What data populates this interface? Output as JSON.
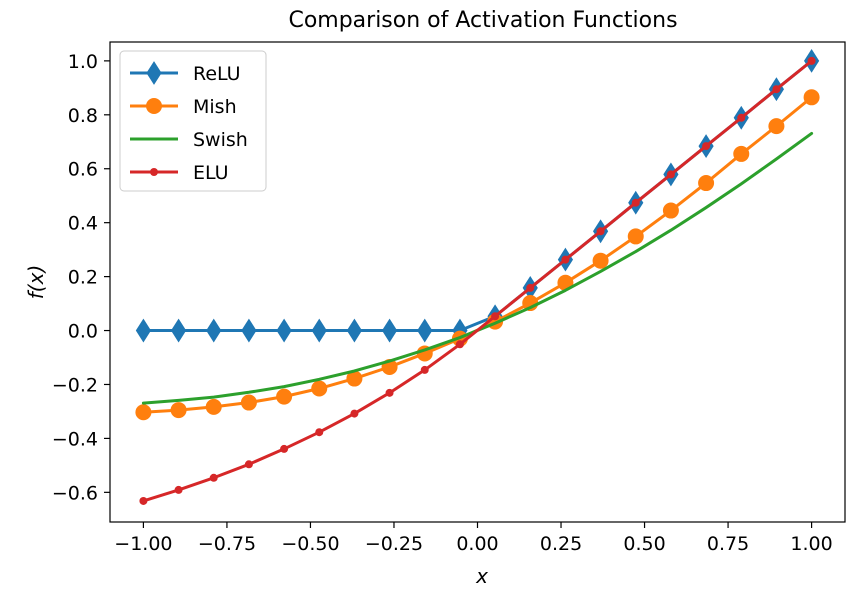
{
  "chart_data": {
    "type": "line",
    "title": "Comparison of Activation Functions",
    "xlabel": "x",
    "ylabel": "f(x)",
    "xlim": [
      -1.1,
      1.1
    ],
    "ylim": [
      -0.71,
      1.07
    ],
    "grid": false,
    "legend_position": "top-left",
    "x_ticks": [
      -1.0,
      -0.75,
      -0.5,
      -0.25,
      0.0,
      0.25,
      0.5,
      0.75,
      1.0
    ],
    "x_tick_labels": [
      "−1.00",
      "−0.75",
      "−0.50",
      "−0.25",
      "0.00",
      "0.25",
      "0.50",
      "0.75",
      "1.00"
    ],
    "y_ticks": [
      -0.6,
      -0.4,
      -0.2,
      0.0,
      0.2,
      0.4,
      0.6,
      0.8,
      1.0
    ],
    "y_tick_labels": [
      "−0.6",
      "−0.4",
      "−0.2",
      "0.0",
      "0.2",
      "0.4",
      "0.6",
      "0.8",
      "1.0"
    ],
    "x": [
      -1.0,
      -0.8947,
      -0.7895,
      -0.6842,
      -0.5789,
      -0.4737,
      -0.3684,
      -0.2632,
      -0.1579,
      -0.0526,
      0.0526,
      0.1579,
      0.2632,
      0.3684,
      0.4737,
      0.5789,
      0.6842,
      0.7895,
      0.8947,
      1.0
    ],
    "series": [
      {
        "name": "ReLU",
        "color": "#1f77b4",
        "marker": "thin-diamond",
        "values": [
          0,
          0,
          0,
          0,
          0,
          0,
          0,
          0,
          0,
          0,
          0.053,
          0.158,
          0.263,
          0.368,
          0.474,
          0.579,
          0.684,
          0.789,
          0.895,
          1.0
        ]
      },
      {
        "name": "Mish",
        "color": "#ff7f0e",
        "marker": "circle",
        "values": [
          -0.303,
          -0.295,
          -0.283,
          -0.267,
          -0.245,
          -0.215,
          -0.178,
          -0.135,
          -0.085,
          -0.03,
          0.033,
          0.102,
          0.177,
          0.259,
          0.349,
          0.445,
          0.547,
          0.655,
          0.758,
          0.865
        ]
      },
      {
        "name": "Swish",
        "color": "#2ca02c",
        "marker": "none",
        "values": [
          -0.269,
          -0.259,
          -0.247,
          -0.229,
          -0.208,
          -0.181,
          -0.15,
          -0.113,
          -0.072,
          -0.026,
          0.027,
          0.085,
          0.149,
          0.219,
          0.293,
          0.372,
          0.456,
          0.544,
          0.636,
          0.731
        ]
      },
      {
        "name": "ELU",
        "color": "#d62728",
        "marker": "point",
        "values": [
          -0.632,
          -0.591,
          -0.546,
          -0.496,
          -0.439,
          -0.377,
          -0.308,
          -0.231,
          -0.146,
          -0.051,
          0.053,
          0.158,
          0.263,
          0.368,
          0.474,
          0.579,
          0.684,
          0.789,
          0.895,
          1.0
        ]
      }
    ]
  }
}
